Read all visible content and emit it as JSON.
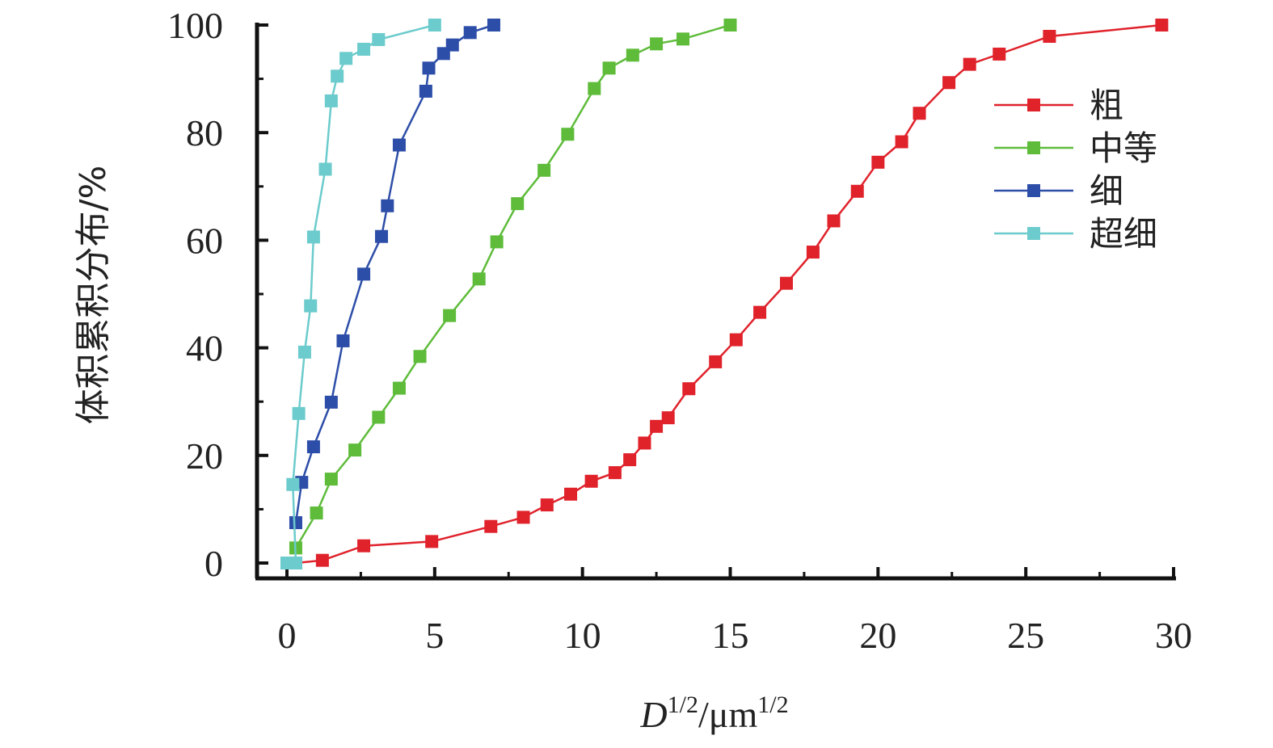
{
  "chart_data": {
    "type": "line",
    "title": "",
    "ylabel": "体积累积分布/%",
    "xlabel": {
      "base": "D",
      "sup1": "1/2",
      "mid": "/μm",
      "sup2": "1/2"
    },
    "xlim": [
      0,
      30
    ],
    "ylim": [
      0,
      100
    ],
    "xticks": [
      "0",
      "5",
      "10",
      "15",
      "20",
      "25",
      "30"
    ],
    "yticks": [
      "0",
      "20",
      "40",
      "60",
      "80",
      "100"
    ],
    "grid": false,
    "legend_position": "top-right",
    "series": [
      {
        "name": "粗",
        "color": "#e0222b",
        "points": [
          [
            0.3,
            0
          ],
          [
            1.2,
            0.5
          ],
          [
            2.6,
            3.2
          ],
          [
            4.9,
            4
          ],
          [
            6.9,
            6.8
          ],
          [
            8,
            8.5
          ],
          [
            8.8,
            10.8
          ],
          [
            9.6,
            12.8
          ],
          [
            10.3,
            15.2
          ],
          [
            11.1,
            16.8
          ],
          [
            11.6,
            19.2
          ],
          [
            12.1,
            22.3
          ],
          [
            12.5,
            25.4
          ],
          [
            12.9,
            27
          ],
          [
            13.6,
            32.4
          ],
          [
            14.5,
            37.4
          ],
          [
            15.2,
            41.5
          ],
          [
            16,
            46.6
          ],
          [
            16.9,
            52
          ],
          [
            17.8,
            57.8
          ],
          [
            18.5,
            63.6
          ],
          [
            19.3,
            69.1
          ],
          [
            20,
            74.5
          ],
          [
            20.8,
            78.3
          ],
          [
            21.4,
            83.6
          ],
          [
            22.4,
            89.3
          ],
          [
            23.1,
            92.7
          ],
          [
            24.1,
            94.6
          ],
          [
            25.8,
            97.9
          ],
          [
            29.6,
            100
          ]
        ]
      },
      {
        "name": "中等",
        "color": "#5ebc3a",
        "points": [
          [
            0.3,
            2.8
          ],
          [
            1,
            9.3
          ],
          [
            1.5,
            15.6
          ],
          [
            2.3,
            21
          ],
          [
            3.1,
            27.1
          ],
          [
            3.8,
            32.5
          ],
          [
            4.5,
            38.4
          ],
          [
            5.5,
            46
          ],
          [
            6.5,
            52.8
          ],
          [
            7.1,
            59.7
          ],
          [
            7.8,
            66.8
          ],
          [
            8.7,
            73
          ],
          [
            9.5,
            79.7
          ],
          [
            10.4,
            88.2
          ],
          [
            10.9,
            92
          ],
          [
            11.7,
            94.4
          ],
          [
            12.5,
            96.5
          ],
          [
            13.4,
            97.4
          ],
          [
            15,
            100
          ]
        ]
      },
      {
        "name": "细",
        "color": "#2d4ea8",
        "points": [
          [
            0.3,
            7.5
          ],
          [
            0.5,
            15
          ],
          [
            0.9,
            21.6
          ],
          [
            1.5,
            29.9
          ],
          [
            1.9,
            41.3
          ],
          [
            2.6,
            53.7
          ],
          [
            3.2,
            60.7
          ],
          [
            3.4,
            66.4
          ],
          [
            3.8,
            77.7
          ],
          [
            4.7,
            87.7
          ],
          [
            4.8,
            92
          ],
          [
            5.3,
            94.7
          ],
          [
            5.6,
            96.3
          ],
          [
            6.2,
            98.6
          ],
          [
            7,
            100
          ]
        ]
      },
      {
        "name": "超细",
        "color": "#6ccbcc",
        "points": [
          [
            0,
            0
          ],
          [
            0.3,
            0
          ],
          [
            0.2,
            14.6
          ],
          [
            0.4,
            27.8
          ],
          [
            0.6,
            39.2
          ],
          [
            0.8,
            47.8
          ],
          [
            0.9,
            60.6
          ],
          [
            1.3,
            73.2
          ],
          [
            1.5,
            85.9
          ],
          [
            1.7,
            90.5
          ],
          [
            2,
            93.8
          ],
          [
            2.6,
            95.5
          ],
          [
            3.1,
            97.3
          ],
          [
            5,
            100
          ]
        ]
      }
    ]
  }
}
